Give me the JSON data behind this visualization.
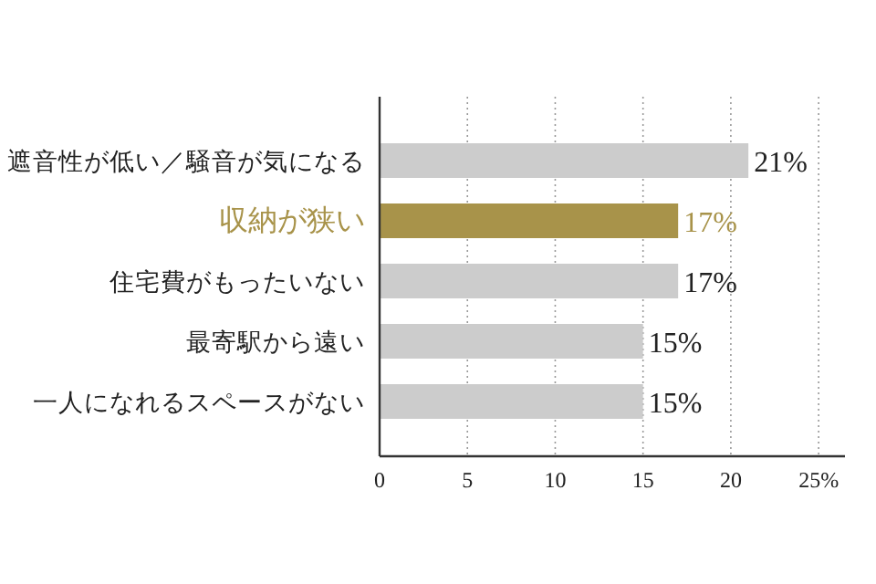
{
  "chart_data": {
    "type": "bar",
    "orientation": "horizontal",
    "categories": [
      "遮音性が低い／騒音が気になる",
      "収納が狭い",
      "住宅費がもったいない",
      "最寄駅から遠い",
      "一人になれるスペースがない"
    ],
    "values": [
      21,
      17,
      17,
      15,
      15
    ],
    "value_labels": [
      "21%",
      "17%",
      "17%",
      "15%",
      "15%"
    ],
    "colors": [
      "#cccccc",
      "#a8934a",
      "#cccccc",
      "#cccccc",
      "#cccccc"
    ],
    "xlim": [
      0,
      26.5
    ],
    "xticks": [
      0,
      5,
      10,
      15,
      20,
      {
        "value": 25,
        "label": "25%"
      }
    ],
    "grid": "x"
  }
}
